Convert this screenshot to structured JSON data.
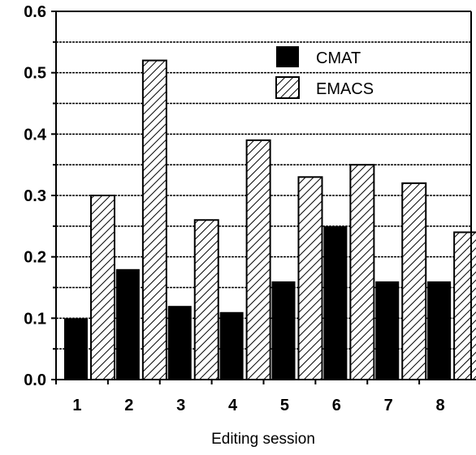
{
  "chart_data": {
    "type": "bar",
    "title": "",
    "xlabel": "Editing session",
    "ylabel": "",
    "categories": [
      "1",
      "2",
      "3",
      "4",
      "5",
      "6",
      "7",
      "8"
    ],
    "series": [
      {
        "name": "CMAT",
        "values": [
          0.1,
          0.18,
          0.12,
          0.11,
          0.16,
          0.25,
          0.16,
          0.16
        ],
        "color": "#000000",
        "fill": "solid"
      },
      {
        "name": "EMACS",
        "values": [
          0.3,
          0.52,
          0.26,
          0.39,
          0.33,
          0.35,
          0.32,
          0.24
        ],
        "color": "#000000",
        "fill": "hatched"
      }
    ],
    "ylim": [
      0,
      0.6
    ],
    "yticks": [
      "0.0",
      "0.1",
      "0.2",
      "0.3",
      "0.4",
      "0.5",
      "0.6"
    ],
    "grid": true,
    "legend_position": "top-right"
  }
}
